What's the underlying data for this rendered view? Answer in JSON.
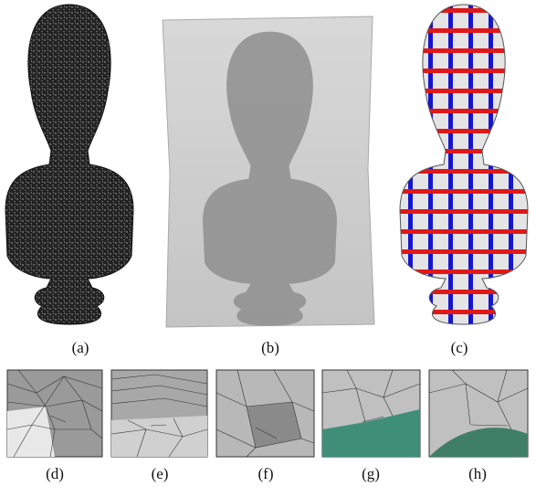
{
  "figure": {
    "top_panels": [
      {
        "label": "(a)"
      },
      {
        "label": "(b)"
      },
      {
        "label": "(c)"
      }
    ],
    "bottom_panels": [
      {
        "label": "(d)"
      },
      {
        "label": "(e)"
      },
      {
        "label": "(f)"
      },
      {
        "label": "(g)"
      },
      {
        "label": "(h)"
      }
    ]
  }
}
